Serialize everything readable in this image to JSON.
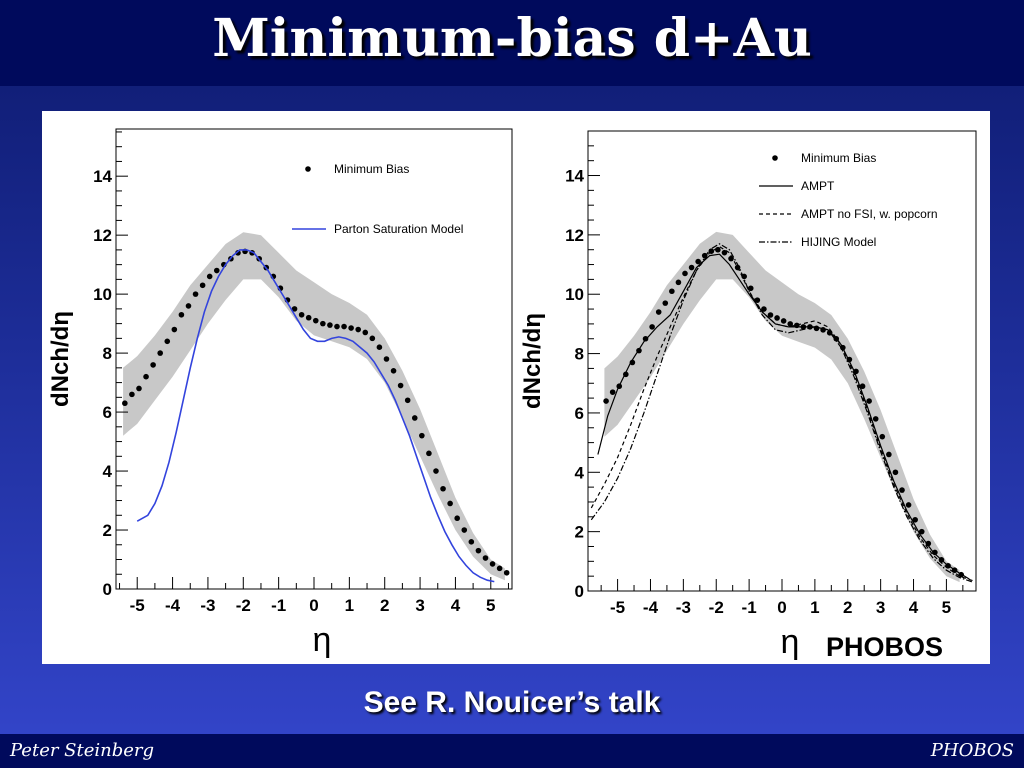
{
  "slide": {
    "title": "Minimum-bias d+Au",
    "caption": "See R. Nouicer’s talk",
    "badge": "PHOBOS",
    "footer_left": "Peter Steinberg",
    "footer_right": "PHOBOS"
  },
  "chart_data": [
    {
      "type": "scatter",
      "xlabel": "η",
      "ylabel": "dNch/dη",
      "xlim": [
        -5.6,
        5.6
      ],
      "ylim": [
        0,
        15.6
      ],
      "xticks": [
        -5,
        -4,
        -3,
        -2,
        -1,
        0,
        1,
        2,
        3,
        4,
        5
      ],
      "yticks": [
        0,
        2,
        4,
        6,
        8,
        10,
        12,
        14
      ],
      "legend_position": "top-right",
      "series": [
        {
          "name": "Minimum Bias",
          "style": "points",
          "color": "#000000",
          "x": [
            -5.35,
            -5.15,
            -4.95,
            -4.75,
            -4.55,
            -4.35,
            -4.15,
            -3.95,
            -3.75,
            -3.55,
            -3.35,
            -3.15,
            -2.95,
            -2.75,
            -2.55,
            -2.35,
            -2.15,
            -1.95,
            -1.75,
            -1.55,
            -1.35,
            -1.15,
            -0.95,
            -0.75,
            -0.55,
            -0.35,
            -0.15,
            0.05,
            0.25,
            0.45,
            0.65,
            0.85,
            1.05,
            1.25,
            1.45,
            1.65,
            1.85,
            2.05,
            2.25,
            2.45,
            2.65,
            2.85,
            3.05,
            3.25,
            3.45,
            3.65,
            3.85,
            4.05,
            4.25,
            4.45,
            4.65,
            4.85,
            5.05,
            5.25,
            5.45
          ],
          "y": [
            6.3,
            6.6,
            6.8,
            7.2,
            7.6,
            8.0,
            8.4,
            8.8,
            9.3,
            9.6,
            10.0,
            10.3,
            10.6,
            10.8,
            11.0,
            11.2,
            11.4,
            11.45,
            11.4,
            11.2,
            10.9,
            10.6,
            10.2,
            9.8,
            9.5,
            9.3,
            9.2,
            9.1,
            9.0,
            8.95,
            8.9,
            8.9,
            8.85,
            8.8,
            8.7,
            8.5,
            8.2,
            7.8,
            7.4,
            6.9,
            6.4,
            5.8,
            5.2,
            4.6,
            4.0,
            3.4,
            2.9,
            2.4,
            2.0,
            1.6,
            1.3,
            1.05,
            0.85,
            0.7,
            0.55
          ]
        },
        {
          "name": "Parton Saturation Model",
          "style": "line",
          "color": "#3344dd",
          "x": [
            -5.0,
            -4.7,
            -4.5,
            -4.3,
            -4.1,
            -3.9,
            -3.7,
            -3.5,
            -3.3,
            -3.1,
            -2.9,
            -2.7,
            -2.5,
            -2.3,
            -2.1,
            -1.9,
            -1.7,
            -1.5,
            -1.3,
            -1.1,
            -0.9,
            -0.7,
            -0.5,
            -0.3,
            -0.1,
            0.1,
            0.3,
            0.5,
            0.7,
            0.9,
            1.1,
            1.3,
            1.5,
            1.7,
            1.9,
            2.1,
            2.3,
            2.5,
            2.7,
            2.9,
            3.1,
            3.3,
            3.5,
            3.7,
            3.9,
            4.1,
            4.3,
            4.5,
            4.7,
            4.9,
            5.1
          ],
          "y": [
            2.3,
            2.5,
            2.9,
            3.5,
            4.3,
            5.3,
            6.4,
            7.5,
            8.5,
            9.4,
            10.1,
            10.6,
            11.0,
            11.3,
            11.5,
            11.5,
            11.4,
            11.1,
            10.8,
            10.4,
            10.0,
            9.6,
            9.2,
            8.8,
            8.5,
            8.4,
            8.4,
            8.5,
            8.55,
            8.5,
            8.4,
            8.2,
            8.0,
            7.7,
            7.3,
            6.9,
            6.4,
            5.8,
            5.2,
            4.5,
            3.8,
            3.1,
            2.5,
            1.95,
            1.5,
            1.1,
            0.8,
            0.55,
            0.4,
            0.3,
            0.25
          ]
        }
      ],
      "band": {
        "color": "#c8c8c8",
        "x": [
          -5.4,
          -5.0,
          -4.5,
          -4.0,
          -3.5,
          -3.0,
          -2.5,
          -2.0,
          -1.5,
          -1.0,
          -0.5,
          0.0,
          0.5,
          1.0,
          1.5,
          2.0,
          2.5,
          3.0,
          3.5,
          4.0,
          4.5,
          5.0,
          5.4
        ],
        "low": [
          5.2,
          5.6,
          6.4,
          7.2,
          8.1,
          9.0,
          9.8,
          10.5,
          10.5,
          9.9,
          9.1,
          8.6,
          8.4,
          8.2,
          7.8,
          7.0,
          5.8,
          4.5,
          3.2,
          2.0,
          1.1,
          0.5,
          0.3
        ],
        "high": [
          7.5,
          7.9,
          8.6,
          9.4,
          10.3,
          11.0,
          11.7,
          12.1,
          12.0,
          11.4,
          10.8,
          10.4,
          10.0,
          9.7,
          9.3,
          8.5,
          7.4,
          6.1,
          4.6,
          3.1,
          1.9,
          1.0,
          0.7
        ]
      }
    },
    {
      "type": "scatter",
      "xlabel": "η",
      "ylabel": "dNch/dη",
      "xlim": [
        -5.9,
        5.9
      ],
      "ylim": [
        0,
        15.5
      ],
      "xticks": [
        -5,
        -4,
        -3,
        -2,
        -1,
        0,
        1,
        2,
        3,
        4,
        5
      ],
      "yticks": [
        0,
        2,
        4,
        6,
        8,
        10,
        12,
        14
      ],
      "legend_position": "top-right",
      "series": [
        {
          "name": "Minimum Bias",
          "style": "points",
          "color": "#000000",
          "x": [
            -5.35,
            -5.15,
            -4.95,
            -4.75,
            -4.55,
            -4.35,
            -4.15,
            -3.95,
            -3.75,
            -3.55,
            -3.35,
            -3.15,
            -2.95,
            -2.75,
            -2.55,
            -2.35,
            -2.15,
            -1.95,
            -1.75,
            -1.55,
            -1.35,
            -1.15,
            -0.95,
            -0.75,
            -0.55,
            -0.35,
            -0.15,
            0.05,
            0.25,
            0.45,
            0.65,
            0.85,
            1.05,
            1.25,
            1.45,
            1.65,
            1.85,
            2.05,
            2.25,
            2.45,
            2.65,
            2.85,
            3.05,
            3.25,
            3.45,
            3.65,
            3.85,
            4.05,
            4.25,
            4.45,
            4.65,
            4.85,
            5.05,
            5.25,
            5.45
          ],
          "y": [
            6.4,
            6.7,
            6.9,
            7.3,
            7.7,
            8.1,
            8.5,
            8.9,
            9.4,
            9.7,
            10.1,
            10.4,
            10.7,
            10.9,
            11.1,
            11.3,
            11.45,
            11.5,
            11.4,
            11.2,
            10.9,
            10.6,
            10.2,
            9.8,
            9.5,
            9.3,
            9.2,
            9.1,
            9.0,
            8.95,
            8.9,
            8.9,
            8.85,
            8.8,
            8.7,
            8.5,
            8.2,
            7.8,
            7.4,
            6.9,
            6.4,
            5.8,
            5.2,
            4.6,
            4.0,
            3.4,
            2.9,
            2.4,
            2.0,
            1.6,
            1.3,
            1.05,
            0.85,
            0.7,
            0.55
          ]
        },
        {
          "name": "AMPT",
          "style": "solid",
          "color": "#000000",
          "x": [
            -5.6,
            -5.3,
            -5.0,
            -4.6,
            -4.2,
            -3.8,
            -3.4,
            -3.0,
            -2.6,
            -2.2,
            -1.9,
            -1.6,
            -1.3,
            -1.0,
            -0.6,
            -0.2,
            0.2,
            0.6,
            1.0,
            1.4,
            1.8,
            2.2,
            2.6,
            3.0,
            3.4,
            3.8,
            4.2,
            4.6,
            5.0,
            5.4,
            5.7
          ],
          "y": [
            4.6,
            5.9,
            6.8,
            7.7,
            8.4,
            8.9,
            9.3,
            10.1,
            10.9,
            11.3,
            11.35,
            11.0,
            10.5,
            10.0,
            9.4,
            9.0,
            8.9,
            8.9,
            8.9,
            8.8,
            8.3,
            7.4,
            6.2,
            4.9,
            3.7,
            2.7,
            1.9,
            1.3,
            0.9,
            0.6,
            0.4
          ]
        },
        {
          "name": "AMPT no FSI, w. popcorn",
          "style": "dashed",
          "color": "#000000",
          "x": [
            -5.8,
            -5.4,
            -5.0,
            -4.6,
            -4.2,
            -3.8,
            -3.4,
            -3.0,
            -2.6,
            -2.2,
            -1.9,
            -1.6,
            -1.3,
            -1.0,
            -0.6,
            -0.2,
            0.2,
            0.6,
            1.0,
            1.4,
            1.8,
            2.2,
            2.6,
            3.0,
            3.4,
            3.8,
            4.2,
            4.6,
            5.0,
            5.4,
            5.8
          ],
          "y": [
            2.8,
            3.6,
            4.5,
            5.6,
            6.8,
            7.9,
            8.9,
            9.9,
            10.8,
            11.4,
            11.6,
            11.4,
            10.8,
            10.1,
            9.4,
            9.0,
            8.9,
            9.0,
            9.1,
            8.9,
            8.3,
            7.3,
            6.1,
            4.8,
            3.6,
            2.6,
            1.8,
            1.2,
            0.8,
            0.5,
            0.35
          ]
        },
        {
          "name": "HIJING Model",
          "style": "dashdot",
          "color": "#000000",
          "x": [
            -5.8,
            -5.4,
            -5.0,
            -4.6,
            -4.2,
            -3.8,
            -3.4,
            -3.0,
            -2.6,
            -2.2,
            -1.9,
            -1.6,
            -1.3,
            -1.0,
            -0.6,
            -0.2,
            0.2,
            0.6,
            1.0,
            1.4,
            1.8,
            2.2,
            2.6,
            3.0,
            3.4,
            3.8,
            4.2,
            4.6,
            5.0,
            5.4,
            5.8
          ],
          "y": [
            2.4,
            3.0,
            3.8,
            4.8,
            6.0,
            7.3,
            8.6,
            9.8,
            10.8,
            11.5,
            11.7,
            11.5,
            10.9,
            10.1,
            9.3,
            8.8,
            8.7,
            8.8,
            8.9,
            8.8,
            8.2,
            7.2,
            6.0,
            4.7,
            3.5,
            2.5,
            1.7,
            1.1,
            0.7,
            0.45,
            0.3
          ]
        }
      ],
      "band": {
        "color": "#c8c8c8",
        "x": [
          -5.4,
          -5.0,
          -4.5,
          -4.0,
          -3.5,
          -3.0,
          -2.5,
          -2.0,
          -1.5,
          -1.0,
          -0.5,
          0.0,
          0.5,
          1.0,
          1.5,
          2.0,
          2.5,
          3.0,
          3.5,
          4.0,
          4.5,
          5.0,
          5.4
        ],
        "low": [
          5.2,
          5.6,
          6.4,
          7.2,
          8.1,
          9.0,
          9.8,
          10.5,
          10.5,
          9.9,
          9.1,
          8.6,
          8.4,
          8.2,
          7.8,
          7.0,
          5.8,
          4.5,
          3.2,
          2.0,
          1.1,
          0.5,
          0.3
        ],
        "high": [
          7.5,
          7.9,
          8.6,
          9.4,
          10.3,
          11.0,
          11.7,
          12.1,
          12.0,
          11.4,
          10.8,
          10.4,
          10.0,
          9.7,
          9.3,
          8.5,
          7.4,
          6.1,
          4.6,
          3.1,
          1.9,
          1.0,
          0.7
        ]
      }
    }
  ]
}
